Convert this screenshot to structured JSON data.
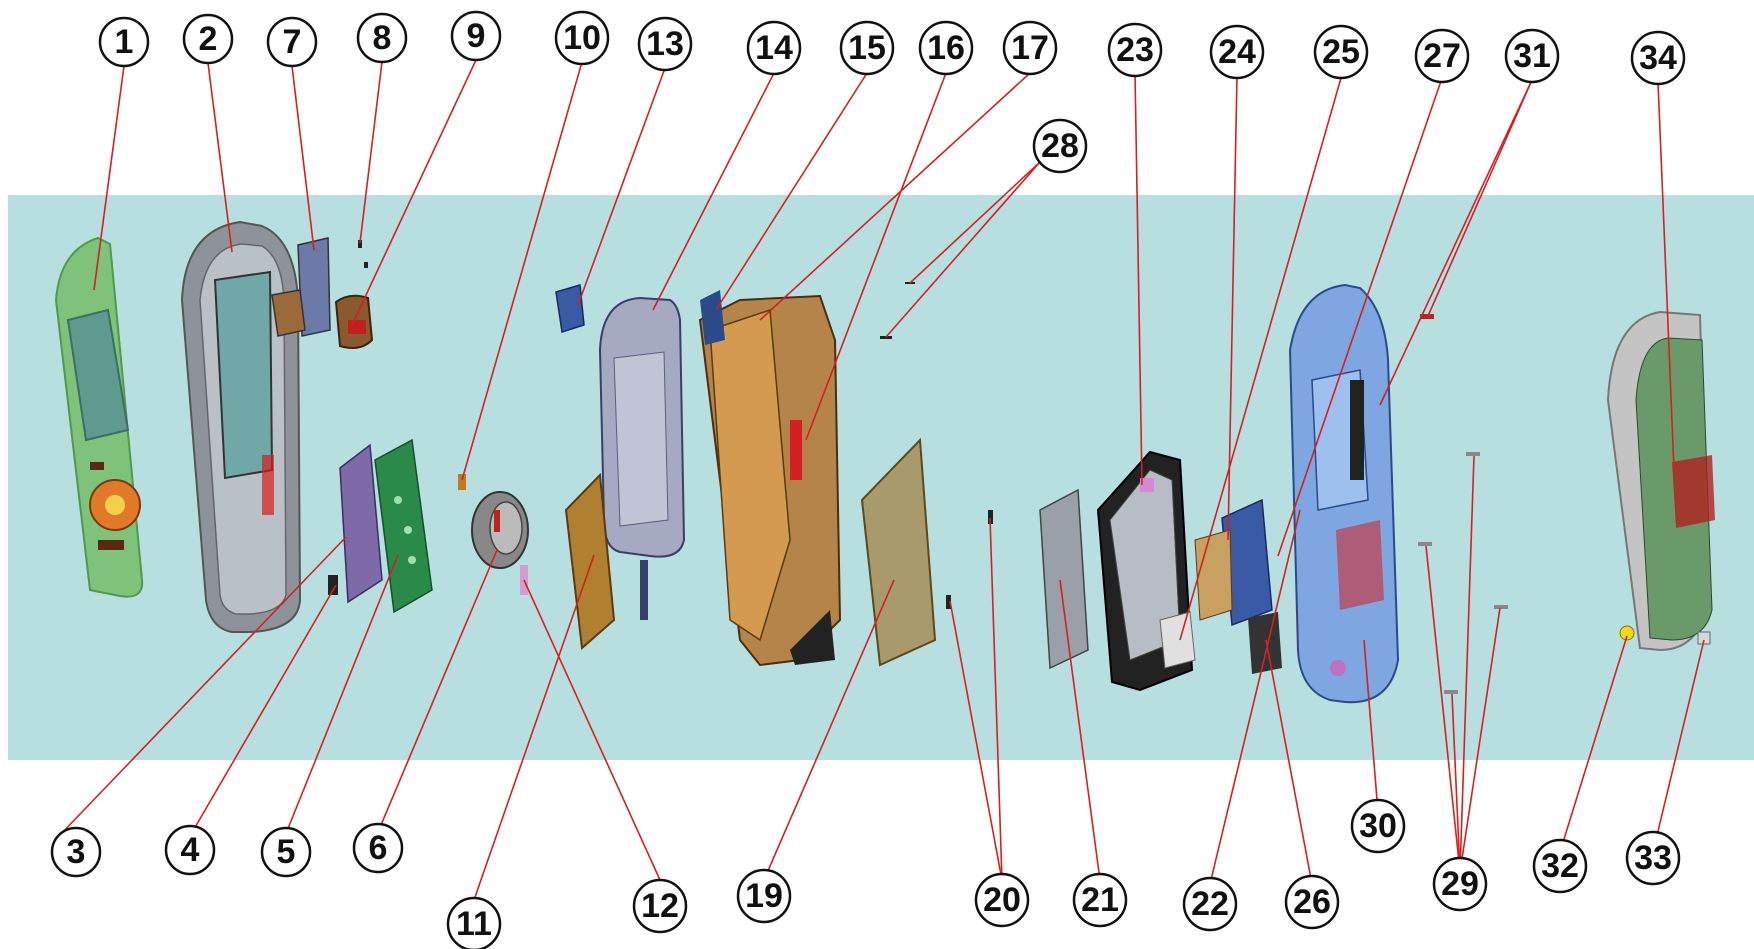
{
  "diagram": {
    "background_band_color": "#b7dfe0",
    "leader_color": "#d42020",
    "callouts": [
      "1",
      "2",
      "7",
      "8",
      "9",
      "10",
      "13",
      "14",
      "15",
      "16",
      "17",
      "23",
      "24",
      "25",
      "27",
      "31",
      "34",
      "28",
      "3",
      "4",
      "5",
      "6",
      "11",
      "12",
      "19",
      "20",
      "21",
      "22",
      "26",
      "30",
      "29",
      "32",
      "33"
    ],
    "parts": [
      "front-keypad-cover",
      "front-housing",
      "small-bracket",
      "tiny-screw",
      "speaker-module",
      "small-tab",
      "buzzer-disc",
      "sub-board",
      "keypad-module",
      "lcd-assembly",
      "flex-frame",
      "main-frame",
      "main-pcb",
      "screws",
      "shield-can",
      "rf-board",
      "back-housing",
      "antenna-cover",
      "battery-cover"
    ]
  }
}
